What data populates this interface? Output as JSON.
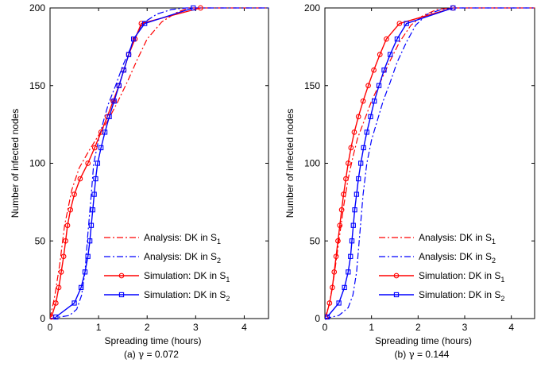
{
  "chart_data": [
    {
      "type": "line",
      "caption": "(a) γ = 0.072",
      "caption_prefix": "(a) ",
      "caption_symbol": "γ",
      "caption_suffix": " = 0.072",
      "xlabel": "Spreading time (hours)",
      "ylabel": "Number of infected nodes",
      "xlim": [
        0,
        4.5
      ],
      "ylim": [
        0,
        200
      ],
      "xticks": [
        0,
        1,
        2,
        3,
        4
      ],
      "yticks": [
        0,
        50,
        100,
        150,
        200
      ],
      "grid": false,
      "legend_position": "bottom-right",
      "series": [
        {
          "name": "Analysis: DK in S1",
          "label_main": "Analysis: DK in S",
          "label_sub": "1",
          "color": "#ff0000",
          "style": "dashdot",
          "marker": "none",
          "x": [
            0,
            0.1,
            0.2,
            0.3,
            0.45,
            0.6,
            0.8,
            1.0,
            1.2,
            1.4,
            1.6,
            1.8,
            2.0,
            2.3,
            2.6,
            2.85,
            3.0,
            4.5
          ],
          "y": [
            0,
            15,
            35,
            60,
            83,
            97,
            108,
            118,
            128,
            140,
            153,
            167,
            180,
            191,
            197,
            200,
            200,
            200
          ]
        },
        {
          "name": "Analysis: DK in S2",
          "label_main": "Analysis: DK in S",
          "label_sub": "2",
          "color": "#0000ff",
          "style": "dashdot",
          "marker": "none",
          "x": [
            0,
            0.4,
            0.55,
            0.65,
            0.72,
            0.78,
            0.85,
            0.9,
            1.0,
            1.1,
            1.2,
            1.35,
            1.5,
            1.7,
            1.9,
            2.2,
            2.5,
            2.8,
            3.0,
            4.5
          ],
          "y": [
            0,
            2,
            6,
            15,
            30,
            55,
            80,
            100,
            115,
            127,
            138,
            150,
            163,
            177,
            190,
            196,
            199,
            200,
            200,
            200
          ]
        },
        {
          "name": "Simulation: DK in S1",
          "label_main": "Simulation: DK in S",
          "label_sub": "1",
          "color": "#ff0000",
          "style": "solid",
          "marker": "circle",
          "x": [
            0.03,
            0.12,
            0.18,
            0.23,
            0.28,
            0.32,
            0.36,
            0.42,
            0.5,
            0.62,
            0.78,
            0.92,
            1.05,
            1.18,
            1.3,
            1.42,
            1.52,
            1.62,
            1.75,
            1.88,
            3.1
          ],
          "y": [
            1,
            10,
            20,
            30,
            40,
            50,
            60,
            70,
            80,
            90,
            100,
            110,
            120,
            130,
            140,
            150,
            160,
            170,
            180,
            190,
            200
          ]
        },
        {
          "name": "Simulation: DK in S2",
          "label_main": "Simulation: DK in S",
          "label_sub": "2",
          "color": "#0000ff",
          "style": "solid",
          "marker": "square",
          "x": [
            0.12,
            0.5,
            0.64,
            0.72,
            0.78,
            0.82,
            0.85,
            0.88,
            0.91,
            0.94,
            0.98,
            1.05,
            1.13,
            1.22,
            1.32,
            1.42,
            1.52,
            1.62,
            1.72,
            1.95,
            2.95
          ],
          "y": [
            1,
            10,
            20,
            30,
            40,
            50,
            60,
            70,
            80,
            90,
            100,
            110,
            120,
            130,
            140,
            150,
            160,
            170,
            180,
            190,
            200
          ]
        }
      ]
    },
    {
      "type": "line",
      "caption": "(b) γ = 0.144",
      "caption_prefix": "(b) ",
      "caption_symbol": "γ",
      "caption_suffix": " = 0.144",
      "xlabel": "Spreading time (hours)",
      "ylabel": "Number of infected nodes",
      "xlim": [
        0,
        4.5
      ],
      "ylim": [
        0,
        200
      ],
      "xticks": [
        0,
        1,
        2,
        3,
        4
      ],
      "yticks": [
        0,
        50,
        100,
        150,
        200
      ],
      "grid": false,
      "legend_position": "bottom-right",
      "series": [
        {
          "name": "Analysis: DK in S1",
          "label_main": "Analysis: DK in S",
          "label_sub": "1",
          "color": "#ff0000",
          "style": "dashdot",
          "marker": "none",
          "x": [
            0,
            0.1,
            0.2,
            0.3,
            0.4,
            0.5,
            0.6,
            0.7,
            0.85,
            1.0,
            1.2,
            1.4,
            1.6,
            1.85,
            2.1,
            2.4,
            2.7,
            4.5
          ],
          "y": [
            0,
            10,
            28,
            50,
            72,
            90,
            104,
            116,
            128,
            140,
            153,
            166,
            178,
            189,
            195,
            199,
            200,
            200
          ]
        },
        {
          "name": "Analysis: DK in S2",
          "label_main": "Analysis: DK in S",
          "label_sub": "2",
          "color": "#0000ff",
          "style": "dashdot",
          "marker": "none",
          "x": [
            0,
            0.3,
            0.5,
            0.6,
            0.68,
            0.75,
            0.82,
            0.9,
            1.0,
            1.12,
            1.25,
            1.4,
            1.55,
            1.75,
            1.95,
            2.2,
            2.5,
            2.8,
            4.5
          ],
          "y": [
            0,
            2,
            7,
            15,
            30,
            55,
            80,
            100,
            115,
            127,
            140,
            152,
            165,
            178,
            189,
            196,
            199,
            200,
            200
          ]
        },
        {
          "name": "Simulation: DK in S1",
          "label_main": "Simulation: DK in S",
          "label_sub": "1",
          "color": "#ff0000",
          "style": "solid",
          "marker": "circle",
          "x": [
            0.02,
            0.1,
            0.16,
            0.2,
            0.24,
            0.28,
            0.32,
            0.36,
            0.4,
            0.45,
            0.5,
            0.56,
            0.63,
            0.72,
            0.82,
            0.93,
            1.05,
            1.18,
            1.32,
            1.6,
            2.75
          ],
          "y": [
            1,
            10,
            20,
            30,
            40,
            50,
            60,
            70,
            80,
            90,
            100,
            110,
            120,
            130,
            140,
            150,
            160,
            170,
            180,
            190,
            200
          ]
        },
        {
          "name": "Simulation: DK in S2",
          "label_main": "Simulation: DK in S",
          "label_sub": "2",
          "color": "#0000ff",
          "style": "solid",
          "marker": "square",
          "x": [
            0.05,
            0.3,
            0.42,
            0.5,
            0.55,
            0.58,
            0.61,
            0.64,
            0.68,
            0.72,
            0.77,
            0.83,
            0.9,
            0.98,
            1.06,
            1.16,
            1.27,
            1.4,
            1.55,
            1.75,
            2.75
          ],
          "y": [
            1,
            10,
            20,
            30,
            40,
            50,
            60,
            70,
            80,
            90,
            100,
            110,
            120,
            130,
            140,
            150,
            160,
            170,
            180,
            190,
            200
          ]
        }
      ]
    }
  ]
}
